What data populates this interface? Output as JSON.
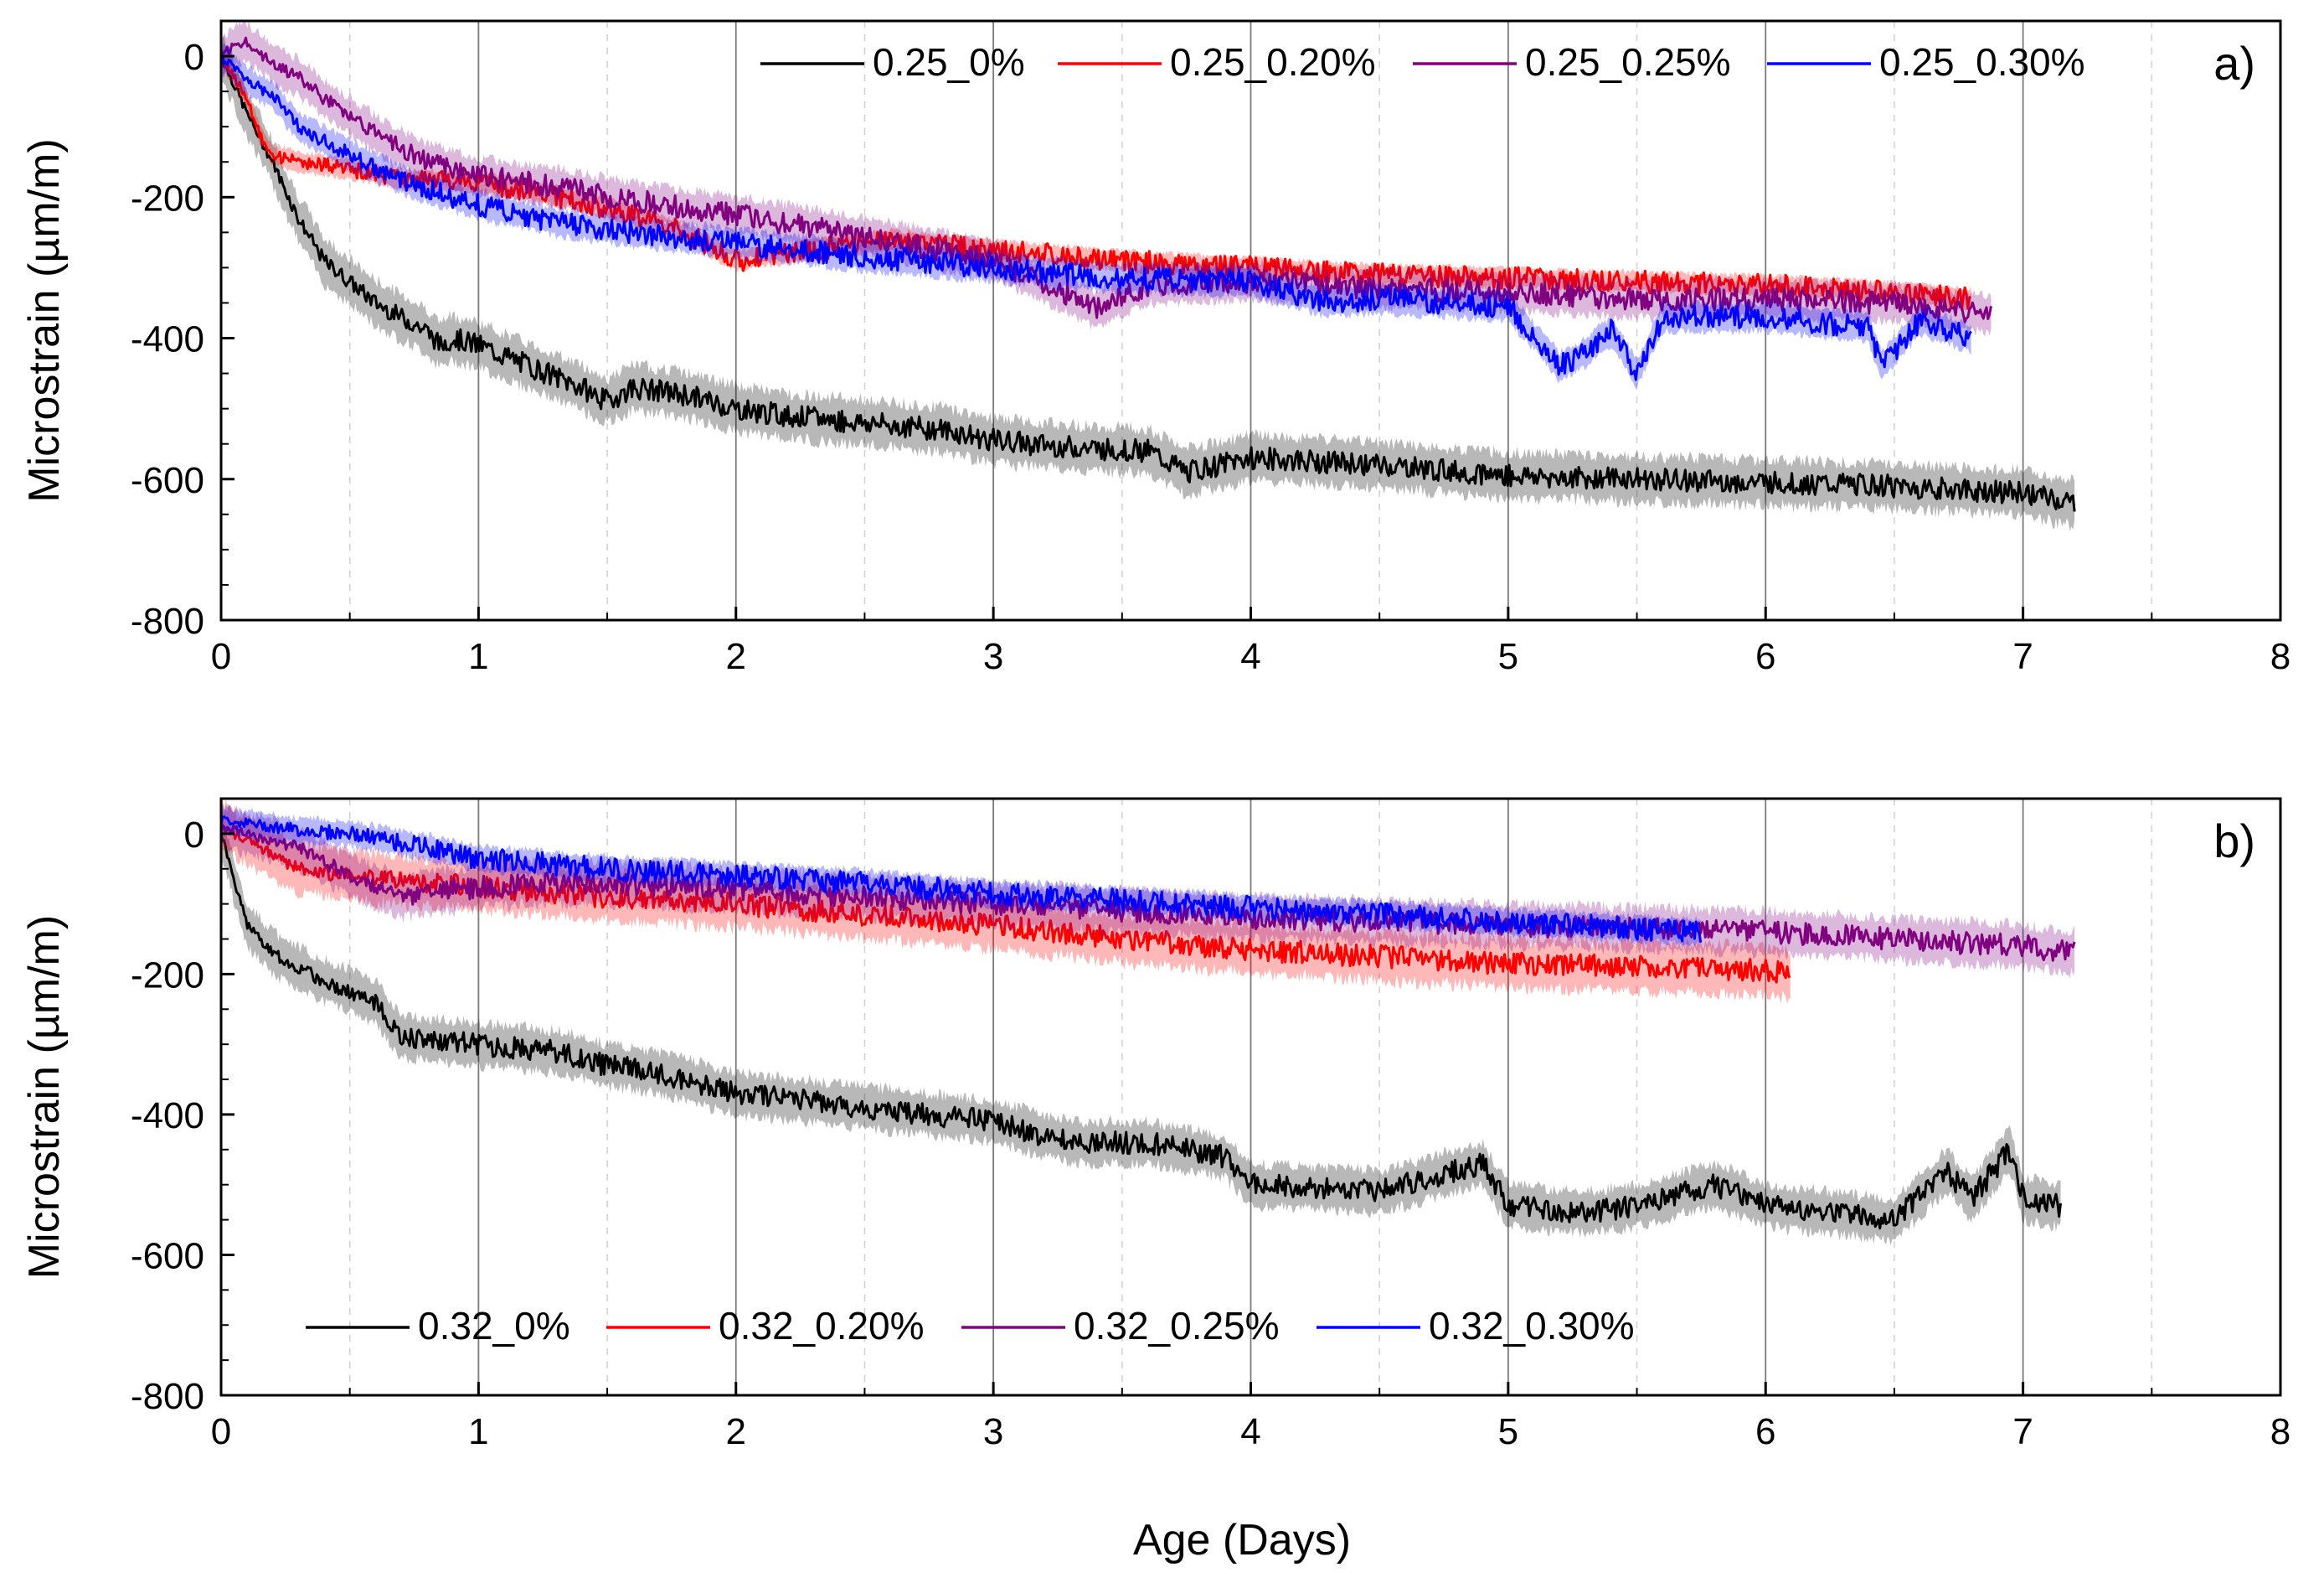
{
  "figure": {
    "xlabel": "Age (Days)"
  },
  "colors": {
    "0%": "#000000",
    "0.20%": "#ff0000",
    "0.25%": "#800080",
    "0.30%": "#0000ff"
  },
  "chart_data": [
    {
      "type": "line",
      "panel_label": "a)",
      "ylabel": "Microstrain (µm/m)",
      "xlabel": "Age (Days)",
      "xlim": [
        0,
        8
      ],
      "ylim": [
        -800,
        50
      ],
      "xticks": [
        "0",
        "1",
        "2",
        "3",
        "4",
        "5",
        "6",
        "7",
        "8"
      ],
      "yticks": [
        "0",
        "-200",
        "-400",
        "-600",
        "-800"
      ],
      "legend_position": "top",
      "series": [
        {
          "name": "0.25_0%",
          "color_key": "0%",
          "band": 32,
          "x": [
            0,
            0.1,
            0.2,
            0.3,
            0.4,
            0.5,
            0.6,
            0.7,
            0.8,
            0.85,
            0.9,
            1.0,
            1.2,
            1.4,
            1.5,
            1.6,
            1.8,
            2.0,
            2.2,
            2.5,
            2.8,
            3.0,
            3.3,
            3.6,
            3.75,
            4.0,
            4.5,
            5.0,
            5.5,
            6.0,
            6.5,
            7.0,
            7.2
          ],
          "y": [
            0,
            -80,
            -150,
            -230,
            -290,
            -320,
            -350,
            -370,
            -390,
            -410,
            -400,
            -410,
            -440,
            -470,
            -490,
            -470,
            -480,
            -500,
            -510,
            -520,
            -530,
            -545,
            -555,
            -560,
            -590,
            -570,
            -580,
            -595,
            -600,
            -605,
            -610,
            -620,
            -635
          ]
        },
        {
          "name": "0.25_0.20%",
          "color_key": "0.20%",
          "band": 14,
          "x": [
            0,
            0.1,
            0.15,
            0.2,
            0.3,
            0.5,
            0.7,
            1.0,
            1.2,
            1.5,
            1.8,
            2.0,
            2.3,
            2.6,
            3.0,
            3.5,
            4.0,
            4.5,
            5.0,
            5.5,
            6.0,
            6.5,
            6.8
          ],
          "y": [
            0,
            -60,
            -110,
            -140,
            -150,
            -160,
            -175,
            -180,
            -190,
            -215,
            -250,
            -290,
            -275,
            -260,
            -275,
            -290,
            -300,
            -310,
            -315,
            -320,
            -325,
            -335,
            -345
          ]
        },
        {
          "name": "0.25_0.25%",
          "color_key": "0.25%",
          "band": 26,
          "x": [
            0,
            0.05,
            0.1,
            0.2,
            0.3,
            0.4,
            0.6,
            0.8,
            1.0,
            1.3,
            1.6,
            2.0,
            2.5,
            3.0,
            3.3,
            3.4,
            3.6,
            4.0,
            4.5,
            5.0,
            5.5,
            6.0,
            6.5,
            6.7,
            6.88
          ],
          "y": [
            0,
            15,
            20,
            -10,
            -30,
            -60,
            -110,
            -150,
            -170,
            -185,
            -205,
            -225,
            -255,
            -290,
            -340,
            -360,
            -325,
            -320,
            -330,
            -335,
            -345,
            -345,
            -350,
            -360,
            -365
          ]
        },
        {
          "name": "0.25_0.30%",
          "color_key": "0.30%",
          "band": 20,
          "x": [
            0,
            0.1,
            0.2,
            0.3,
            0.5,
            0.7,
            0.9,
            1.1,
            1.3,
            1.6,
            2.0,
            2.5,
            3.0,
            3.5,
            4.0,
            4.3,
            4.5,
            5.0,
            5.2,
            5.3,
            5.4,
            5.5,
            5.6,
            6.0,
            6.4,
            6.45,
            6.6,
            6.8
          ],
          "y": [
            0,
            -35,
            -55,
            -100,
            -140,
            -175,
            -200,
            -220,
            -235,
            -250,
            -265,
            -285,
            -300,
            -315,
            -320,
            -350,
            -345,
            -355,
            -440,
            -420,
            -390,
            -450,
            -370,
            -370,
            -385,
            -440,
            -375,
            -400
          ]
        }
      ]
    },
    {
      "type": "line",
      "panel_label": "b)",
      "ylabel": "Microstrain (µm/m)",
      "xlabel": "Age (Days)",
      "xlim": [
        0,
        8
      ],
      "ylim": [
        -800,
        50
      ],
      "xticks": [
        "0",
        "1",
        "2",
        "3",
        "4",
        "5",
        "6",
        "7",
        "8"
      ],
      "yticks": [
        "0",
        "-200",
        "-400",
        "-600",
        "-800"
      ],
      "legend_position": "bottom",
      "series": [
        {
          "name": "0.32_0%",
          "color_key": "0%",
          "band": 30,
          "x": [
            0,
            0.1,
            0.2,
            0.4,
            0.6,
            0.7,
            1.0,
            1.3,
            1.5,
            1.7,
            2.0,
            2.5,
            3.0,
            3.3,
            3.6,
            3.9,
            4.0,
            4.5,
            4.9,
            5.0,
            5.3,
            5.5,
            5.8,
            6.0,
            6.5,
            6.7,
            6.8,
            6.95,
            7.0,
            7.15
          ],
          "y": [
            0,
            -130,
            -170,
            -210,
            -240,
            -290,
            -300,
            -310,
            -330,
            -340,
            -370,
            -390,
            -410,
            -440,
            -440,
            -460,
            -500,
            -510,
            -470,
            -530,
            -540,
            -530,
            -500,
            -530,
            -550,
            -480,
            -520,
            -450,
            -520,
            -530
          ]
        },
        {
          "name": "0.32_0.20%",
          "color_key": "0.20%",
          "band": 34,
          "x": [
            0,
            0.1,
            0.2,
            0.3,
            0.5,
            0.8,
            1.0,
            1.5,
            2.0,
            2.5,
            3.0,
            3.5,
            4.0,
            4.5,
            5.0,
            5.5,
            6.0,
            6.1
          ],
          "y": [
            10,
            -10,
            -30,
            -50,
            -60,
            -70,
            -75,
            -90,
            -100,
            -115,
            -130,
            -150,
            -165,
            -175,
            -185,
            -190,
            -195,
            -200
          ]
        },
        {
          "name": "0.32_0.25%",
          "color_key": "0.25%",
          "band": 30,
          "x": [
            0,
            0.1,
            0.3,
            0.5,
            0.7,
            0.9,
            1.2,
            1.5,
            2.0,
            2.5,
            3.0,
            3.5,
            4.0,
            4.5,
            5.0,
            5.5,
            6.0,
            6.5,
            7.0,
            7.2
          ],
          "y": [
            10,
            0,
            -20,
            -60,
            -90,
            -80,
            -70,
            -70,
            -80,
            -90,
            -100,
            -110,
            -120,
            -125,
            -130,
            -135,
            -140,
            -150,
            -160,
            -170
          ]
        },
        {
          "name": "0.32_0.30%",
          "color_key": "0.30%",
          "band": 18,
          "x": [
            0,
            0.1,
            0.3,
            0.5,
            0.8,
            1.0,
            1.5,
            2.0,
            2.5,
            3.0,
            3.5,
            4.0,
            4.5,
            5.0,
            5.5,
            5.75
          ],
          "y": [
            20,
            15,
            5,
            0,
            -20,
            -35,
            -50,
            -60,
            -70,
            -85,
            -95,
            -105,
            -115,
            -125,
            -135,
            -140
          ]
        }
      ]
    }
  ]
}
